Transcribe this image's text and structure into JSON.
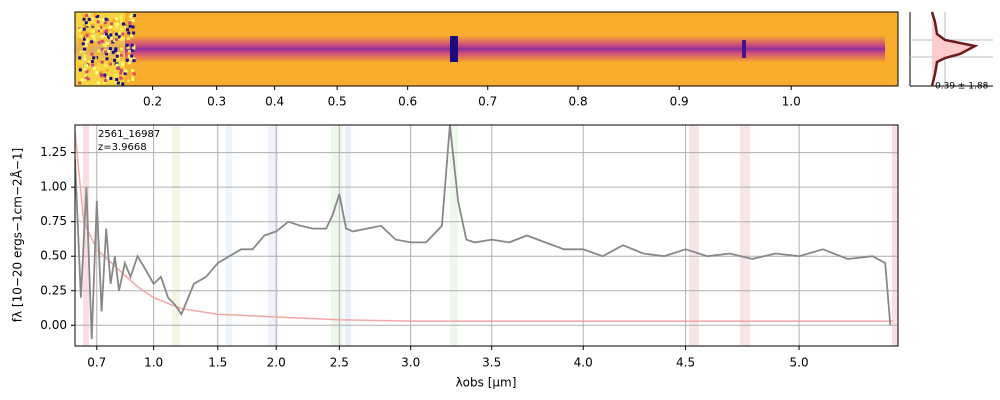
{
  "chart_data": {
    "type": "line",
    "object_id": "2561_16987",
    "redshift": {
      "value": 3.9668,
      "label": "z=3.9668"
    },
    "histogram_label": "0.39 ± 1.88",
    "x_label": "λobs [μm]",
    "y_label": "fλ [10−20 ergs−1cm−2Å−1]",
    "xlim": [
      0.62,
      5.4
    ],
    "ylim": [
      -0.15,
      1.45
    ],
    "xticks": [
      0.7,
      {
        "value": 1,
        "label": "1.0"
      },
      1.5,
      {
        "value": 2,
        "label": "2.0"
      },
      2.5,
      {
        "value": 3,
        "label": "3.0"
      },
      3.5,
      {
        "value": 4,
        "label": "4.0"
      },
      4.5,
      {
        "value": 5,
        "label": "5.0"
      }
    ],
    "yticks": [
      {
        "value": 0,
        "label": "0.00"
      },
      {
        "value": 0.25,
        "label": "0.25"
      },
      {
        "value": 0.5,
        "label": "0.50"
      },
      {
        "value": 0.75,
        "label": "0.75"
      },
      {
        "value": 1,
        "label": "1.00"
      },
      {
        "value": 1.25,
        "label": "1.25"
      }
    ],
    "top_xticks": [
      0.2,
      0.3,
      0.4,
      0.5,
      0.6,
      0.7,
      0.8,
      0.9,
      {
        "value": 1,
        "label": "1.0"
      }
    ],
    "grid": true,
    "series": [
      {
        "name": "flux",
        "color": "#888888",
        "x": [
          0.62,
          0.64,
          0.66,
          0.68,
          0.7,
          0.72,
          0.74,
          0.76,
          0.78,
          0.8,
          0.83,
          0.86,
          0.9,
          0.95,
          1.0,
          1.05,
          1.1,
          1.15,
          1.2,
          1.3,
          1.4,
          1.5,
          1.6,
          1.7,
          1.8,
          1.9,
          2.0,
          2.1,
          2.2,
          2.3,
          2.4,
          2.45,
          2.5,
          2.55,
          2.6,
          2.7,
          2.8,
          2.9,
          3.0,
          3.1,
          3.2,
          3.25,
          3.3,
          3.35,
          3.4,
          3.5,
          3.6,
          3.7,
          3.8,
          3.9,
          4.0,
          4.1,
          4.2,
          4.3,
          4.4,
          4.5,
          4.6,
          4.7,
          4.8,
          4.9,
          5.0,
          5.1,
          5.2,
          5.3,
          5.35,
          5.37
        ],
        "values": [
          1.2,
          0.2,
          1.0,
          -0.1,
          0.9,
          0.1,
          0.7,
          0.3,
          0.5,
          0.25,
          0.45,
          0.35,
          0.5,
          0.4,
          0.3,
          0.35,
          0.2,
          0.15,
          0.08,
          0.3,
          0.35,
          0.45,
          0.5,
          0.55,
          0.55,
          0.65,
          0.68,
          0.75,
          0.72,
          0.7,
          0.7,
          0.8,
          0.95,
          0.7,
          0.68,
          0.7,
          0.72,
          0.62,
          0.6,
          0.6,
          0.72,
          1.45,
          0.9,
          0.62,
          0.6,
          0.62,
          0.6,
          0.65,
          0.6,
          0.55,
          0.55,
          0.5,
          0.58,
          0.52,
          0.5,
          0.55,
          0.5,
          0.52,
          0.48,
          0.52,
          0.5,
          0.55,
          0.48,
          0.5,
          0.45,
          0.0
        ]
      },
      {
        "name": "error",
        "color": "#f4a7a7",
        "x": [
          0.62,
          0.65,
          0.7,
          0.8,
          0.9,
          1.0,
          1.2,
          1.5,
          2.0,
          2.5,
          3.0,
          4.0,
          5.0,
          5.38
        ],
        "values": [
          1.4,
          0.75,
          0.55,
          0.4,
          0.28,
          0.2,
          0.12,
          0.08,
          0.06,
          0.04,
          0.03,
          0.03,
          0.03,
          0.03
        ]
      }
    ]
  }
}
